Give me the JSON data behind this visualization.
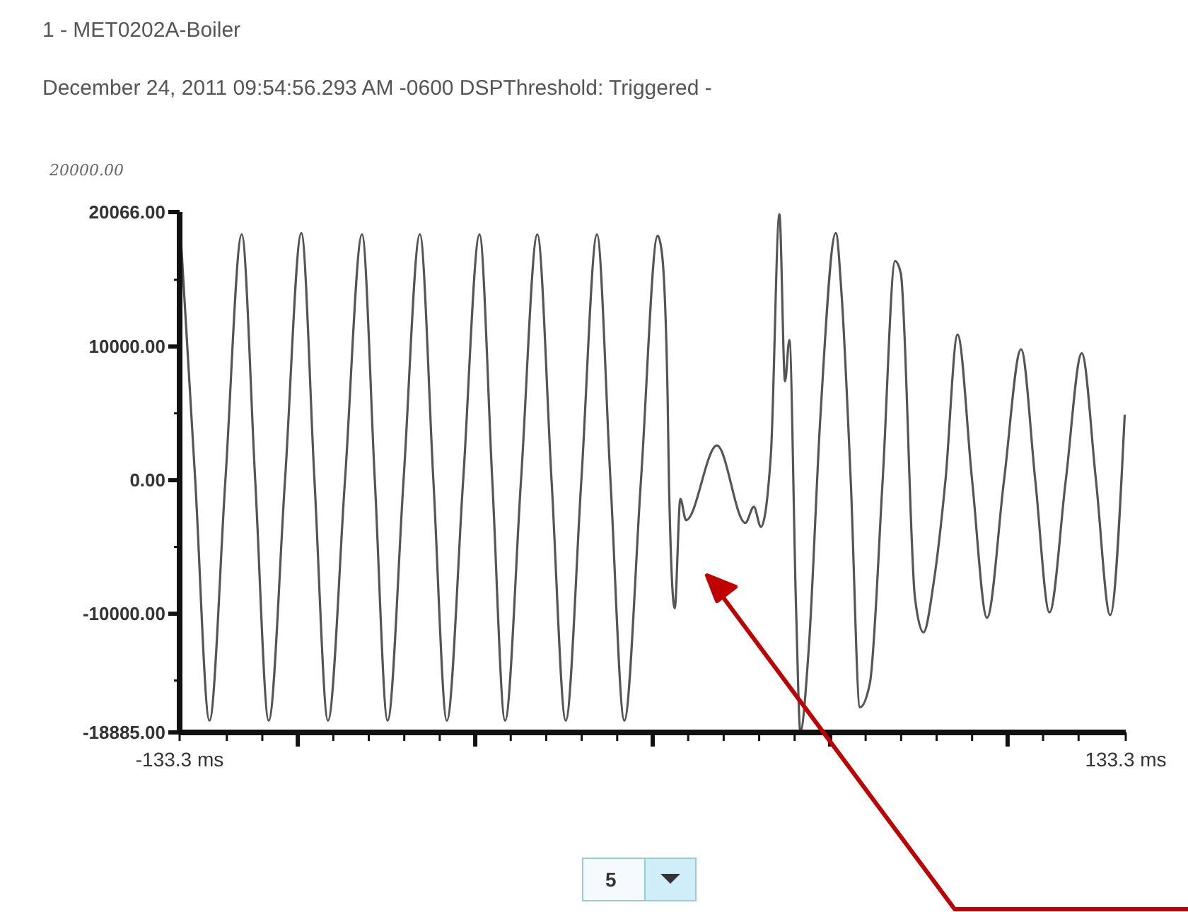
{
  "chart_data": {
    "type": "line",
    "title": "1 - MET0202A-Boiler",
    "subtitle": "December 24, 2011 09:54:56.293 AM -0600 DSPThreshold: Triggered -",
    "annotations": [
      "20000.00",
      "5"
    ],
    "x": [
      -132.9,
      -128.9,
      -124.9,
      -120.4,
      -115.8,
      -112.0,
      -108.2,
      -103.6,
      -99.0,
      -95.3,
      -91.5,
      -86.7,
      -81.9,
      -78.3,
      -74.7,
      -70.2,
      -65.6,
      -61.8,
      -58.0,
      -53.4,
      -48.8,
      -45.2,
      -41.6,
      -37.1,
      -32.5,
      -28.5,
      -24.5,
      -20.1,
      -15.7,
      -11.9,
      -8.0,
      -3.3,
      1.4,
      2.6,
      4.2,
      4.6,
      6.2,
      7.8,
      9.4,
      18.1,
      26.1,
      28.5,
      30.5,
      33.3,
      35.7,
      37.3,
      38.5,
      40.4,
      41.6,
      44.0,
      47.2,
      51.6,
      53.2,
      55.8,
      58.4,
      61.2,
      64.8,
      68.3,
      69.9,
      73.9,
      76.3,
      79.1,
      82.5,
      85.9,
      90.0,
      94.2,
      99.0,
      103.8,
      107.8,
      111.8,
      116.4,
      120.9,
      124.9,
      128.9,
      133.0
    ],
    "series": [
      {
        "color": "#555555",
        "values": [
          17900,
          0,
          -18000,
          0,
          18400,
          0,
          -18000,
          0,
          18500,
          0,
          -18000,
          0,
          18400,
          0,
          -18000,
          0,
          18400,
          0,
          -18000,
          0,
          18400,
          0,
          -18000,
          0,
          18400,
          0,
          -18000,
          0,
          18400,
          0,
          -18000,
          0,
          18300,
          17000,
          6300,
          -400,
          -9600,
          -1400,
          -3000,
          2600,
          -3200,
          -2000,
          -3500,
          1900,
          19900,
          7400,
          10500,
          -9600,
          -18800,
          -12500,
          4500,
          18500,
          14000,
          0,
          -17000,
          -15200,
          0,
          16400,
          15500,
          -8800,
          -11400,
          -7800,
          0,
          10900,
          0,
          -10300,
          0,
          9800,
          0,
          -9900,
          0,
          9500,
          0,
          -10100,
          4900
        ]
      }
    ],
    "xlim": [
      -133.3,
      133.3
    ],
    "xticks": [
      {
        "value": -133.3,
        "label": "-133.3 ms"
      },
      {
        "value": -120,
        "label": null
      },
      {
        "value": -110,
        "label": null
      },
      {
        "value": -100,
        "label": null
      },
      {
        "value": -90,
        "label": null
      },
      {
        "value": -80,
        "label": null
      },
      {
        "value": -70,
        "label": null
      },
      {
        "value": -60,
        "label": null
      },
      {
        "value": -50,
        "label": null
      },
      {
        "value": -40,
        "label": null
      },
      {
        "value": -30,
        "label": null
      },
      {
        "value": -20,
        "label": null
      },
      {
        "value": -10,
        "label": null
      },
      {
        "value": 0,
        "label": null
      },
      {
        "value": 10,
        "label": null
      },
      {
        "value": 20,
        "label": null
      },
      {
        "value": 30,
        "label": null
      },
      {
        "value": 40,
        "label": null
      },
      {
        "value": 50,
        "label": null
      },
      {
        "value": 60,
        "label": null
      },
      {
        "value": 70,
        "label": null
      },
      {
        "value": 80,
        "label": null
      },
      {
        "value": 90,
        "label": null
      },
      {
        "value": 100,
        "label": null
      },
      {
        "value": 110,
        "label": null
      },
      {
        "value": 120,
        "label": null
      },
      {
        "value": 133.3,
        "label": "133.3 ms"
      }
    ],
    "ylim": [
      -18885,
      20066
    ],
    "yticks": [
      {
        "value": -18885,
        "label": "-18885.00"
      },
      {
        "value": -15000,
        "label": null
      },
      {
        "value": -10000,
        "label": "-10000.00"
      },
      {
        "value": -5000,
        "label": null
      },
      {
        "value": 0,
        "label": "0.00"
      },
      {
        "value": 5000,
        "label": null
      },
      {
        "value": 10000,
        "label": "10000.00"
      },
      {
        "value": 15000,
        "label": null
      },
      {
        "value": 20066,
        "label": "20066.00"
      }
    ],
    "grid": false,
    "marker": "none",
    "line_style": "solid"
  }
}
